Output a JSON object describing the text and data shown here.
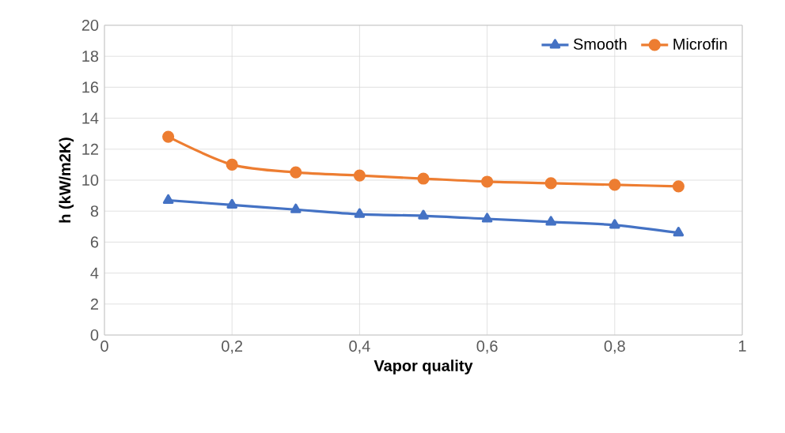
{
  "chart_data": {
    "type": "line",
    "xlabel": "Vapor quality",
    "ylabel": "h (kW/m2K)",
    "xlim": [
      0,
      1
    ],
    "ylim": [
      0,
      20
    ],
    "xticks": [
      0,
      {
        "value": 0.2,
        "label": "0,2"
      },
      {
        "value": 0.4,
        "label": "0,4"
      },
      {
        "value": 0.6,
        "label": "0,6"
      },
      {
        "value": 0.8,
        "label": "0,8"
      },
      1
    ],
    "yticks": [
      0,
      2,
      4,
      6,
      8,
      10,
      12,
      14,
      16,
      18,
      20
    ],
    "x": [
      0.1,
      0.2,
      0.3,
      0.4,
      0.5,
      0.6,
      0.7,
      0.8,
      0.9
    ],
    "grid": true,
    "legend": "top right",
    "line_style": "solid",
    "series": [
      {
        "name": "Smooth",
        "color": "#4472c4",
        "marker": "triangle",
        "values": [
          8.7,
          8.4,
          8.1,
          7.8,
          7.7,
          7.5,
          7.3,
          7.1,
          6.6
        ]
      },
      {
        "name": "Microfin",
        "color": "#ed7d31",
        "marker": "circle",
        "values": [
          12.8,
          11.0,
          10.5,
          10.3,
          10.1,
          9.9,
          9.8,
          9.7,
          9.6
        ]
      }
    ]
  }
}
